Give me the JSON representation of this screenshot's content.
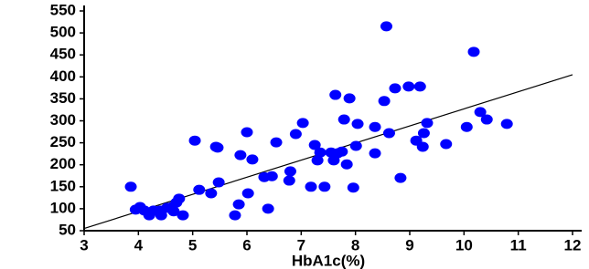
{
  "chart_data": {
    "type": "scatter",
    "x_label": "HbA1c(%)",
    "color": "#0000ff",
    "xlim": [
      3,
      12
    ],
    "ylim": [
      50,
      550
    ],
    "xticks": [
      3,
      4,
      5,
      6,
      7,
      8,
      9,
      10,
      11,
      12
    ],
    "yticks": [
      50,
      100,
      150,
      200,
      250,
      300,
      350,
      400,
      450,
      500,
      550
    ],
    "x": [
      3.86,
      3.95,
      4.03,
      4.11,
      4.2,
      4.28,
      4.4,
      4.53,
      4.62,
      4.7,
      4.75,
      4.65,
      4.82,
      4.42,
      5.04,
      5.12,
      5.34,
      5.43,
      5.46,
      5.48,
      5.78,
      5.85,
      5.88,
      6.0,
      6.02,
      6.1,
      6.32,
      6.39,
      6.46,
      6.54,
      6.78,
      6.8,
      6.9,
      7.03,
      7.18,
      7.25,
      7.3,
      7.35,
      7.43,
      7.55,
      7.6,
      7.67,
      7.63,
      7.75,
      7.79,
      7.84,
      7.89,
      7.96,
      8.01,
      8.04,
      8.36,
      8.36,
      8.53,
      8.57,
      8.62,
      8.73,
      8.83,
      8.98,
      9.12,
      9.19,
      9.24,
      9.26,
      9.32,
      9.67,
      10.05,
      10.18,
      10.3,
      10.42,
      10.79
    ],
    "y": [
      150,
      98,
      104,
      96,
      85,
      96,
      96,
      102,
      104,
      114,
      123,
      94,
      85,
      85,
      255,
      143,
      135,
      241,
      239,
      160,
      85,
      110,
      222,
      274,
      135,
      212,
      172,
      100,
      174,
      251,
      164,
      185,
      270,
      295,
      150,
      245,
      210,
      228,
      150,
      228,
      210,
      226,
      359,
      230,
      303,
      201,
      351,
      148,
      243,
      293,
      286,
      226,
      345,
      515,
      272,
      374,
      170,
      378,
      255,
      378,
      241,
      272,
      295,
      247,
      286,
      457,
      320,
      303,
      293
    ],
    "fit": {
      "x": [
        3,
        12
      ],
      "y": [
        55,
        405
      ],
      "color": "#000000"
    }
  }
}
